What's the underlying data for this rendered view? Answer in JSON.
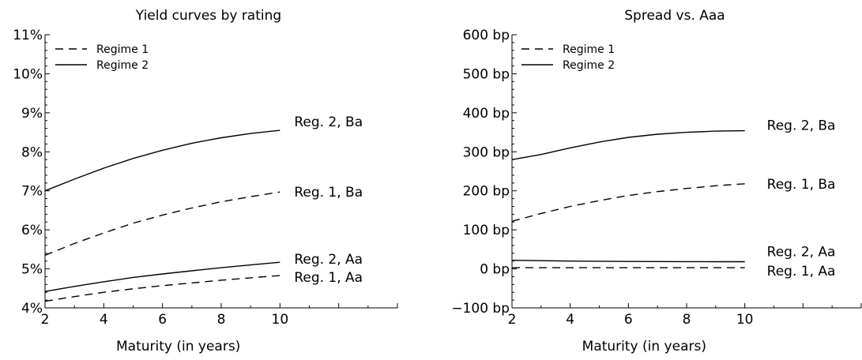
{
  "chart_data": [
    {
      "type": "line",
      "title": "Yield curves by rating",
      "xlabel": "Maturity (in years)",
      "ylabel": "",
      "xlim": [
        2,
        14
      ],
      "ylim": [
        4,
        11
      ],
      "xticks": [
        2,
        4,
        6,
        8,
        10
      ],
      "xtick_labels": [
        "2",
        "4",
        "6",
        "8",
        "10"
      ],
      "yticks": [
        4,
        5,
        6,
        7,
        8,
        9,
        10,
        11
      ],
      "ytick_labels": [
        "4%",
        "5%",
        "6%",
        "7%",
        "8%",
        "9%",
        "10%",
        "11%"
      ],
      "legend": {
        "placement": "top-left",
        "entries": [
          {
            "label": "Regime 1",
            "style": "dashed"
          },
          {
            "label": "Regime 2",
            "style": "solid"
          }
        ]
      },
      "x": [
        2,
        3,
        4,
        5,
        6,
        7,
        8,
        9,
        10
      ],
      "series": [
        {
          "label": "Reg. 2, Ba",
          "style": "solid",
          "values": [
            7.0,
            7.3,
            7.58,
            7.83,
            8.04,
            8.22,
            8.36,
            8.47,
            8.55
          ]
        },
        {
          "label": "Reg. 1, Ba",
          "style": "dashed",
          "values": [
            5.35,
            5.65,
            5.92,
            6.17,
            6.38,
            6.56,
            6.72,
            6.85,
            6.97
          ]
        },
        {
          "label": "Reg. 2, Aa",
          "style": "solid",
          "values": [
            4.42,
            4.55,
            4.67,
            4.78,
            4.87,
            4.95,
            5.03,
            5.1,
            5.17
          ]
        },
        {
          "label": "Reg. 1, Aa",
          "style": "dashed",
          "values": [
            4.17,
            4.29,
            4.4,
            4.49,
            4.57,
            4.64,
            4.71,
            4.77,
            4.83
          ]
        }
      ]
    },
    {
      "type": "line",
      "title": "Spread vs. Aaa",
      "xlabel": "Maturity (in years)",
      "ylabel": "",
      "xlim": [
        2,
        14
      ],
      "ylim": [
        -100,
        600
      ],
      "xticks": [
        2,
        4,
        6,
        8,
        10
      ],
      "xtick_labels": [
        "2",
        "4",
        "6",
        "8",
        "10"
      ],
      "yticks": [
        -100,
        0,
        100,
        200,
        300,
        400,
        500,
        600
      ],
      "ytick_labels": [
        "−100 bp",
        "0 bp",
        "100 bp",
        "200 bp",
        "300 bp",
        "400 bp",
        "500 bp",
        "600 bp"
      ],
      "legend": {
        "placement": "top-left",
        "entries": [
          {
            "label": "Regime 1",
            "style": "dashed"
          },
          {
            "label": "Regime 2",
            "style": "solid"
          }
        ]
      },
      "x": [
        2,
        3,
        4,
        5,
        6,
        7,
        8,
        9,
        10
      ],
      "series": [
        {
          "label": "Reg. 2, Ba",
          "style": "solid",
          "values": [
            280,
            293,
            310,
            325,
            337,
            345,
            350,
            353,
            354
          ]
        },
        {
          "label": "Reg. 1, Ba",
          "style": "dashed",
          "values": [
            122,
            142,
            160,
            175,
            188,
            198,
            206,
            213,
            218
          ]
        },
        {
          "label": "Reg. 2, Aa",
          "style": "solid",
          "values": [
            22,
            21,
            20,
            19.5,
            19,
            18.8,
            18.5,
            18.4,
            18.3
          ]
        },
        {
          "label": "Reg. 1, Aa",
          "style": "dashed",
          "values": [
            3,
            3,
            3,
            3,
            3,
            3,
            3,
            3,
            3
          ]
        }
      ]
    }
  ]
}
